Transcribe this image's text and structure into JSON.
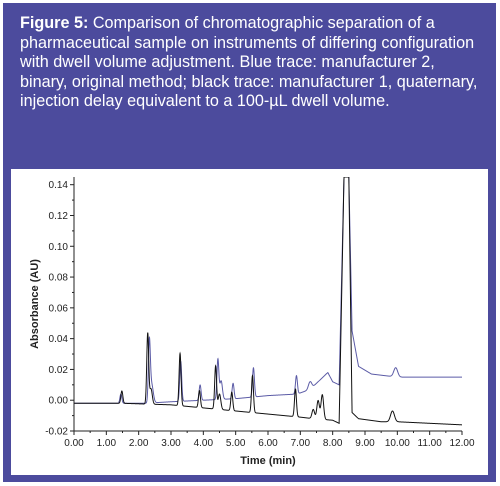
{
  "caption": {
    "label": "Figure 5:",
    "text": " Comparison of chromatographic separation of a pharmaceutical sample on instruments of differing configuration with dwell volume adjustment. Blue trace: manufacturer 2, binary, original method; black trace: manufacturer 1, quaternary, injection delay equivalent to a 100-µL dwell volume."
  },
  "colors": {
    "panel": "#4c4b9d",
    "blue_trace": "#5b5ba6",
    "black_trace": "#111111"
  },
  "chart_data": {
    "type": "line",
    "title": "",
    "xlabel": "Time (min)",
    "ylabel": "Absorbance (AU)",
    "xlim": [
      0,
      12
    ],
    "ylim": [
      -0.02,
      0.145
    ],
    "x_ticks": [
      "0.00",
      "1.00",
      "2.00",
      "3.00",
      "4.00",
      "5.00",
      "6.00",
      "7.00",
      "8.00",
      "9.00",
      "10.00",
      "11.00",
      "12.00"
    ],
    "y_ticks": [
      "-0.02",
      "0.00",
      "0.02",
      "0.04",
      "0.06",
      "0.08",
      "0.10",
      "0.12",
      "0.14"
    ],
    "y_tick_values": [
      -0.02,
      0.0,
      0.02,
      0.04,
      0.06,
      0.08,
      0.1,
      0.12,
      0.14
    ],
    "grid": false,
    "series": [
      {
        "color": "#5b5ba6",
        "baseline": [
          [
            0,
            -0.002
          ],
          [
            2.2,
            -0.002
          ],
          [
            3.0,
            -0.001
          ],
          [
            4.0,
            0.0
          ],
          [
            5.0,
            0.001
          ],
          [
            6.0,
            0.003
          ],
          [
            6.9,
            0.004
          ],
          [
            7.3,
            0.007
          ],
          [
            7.5,
            0.011
          ],
          [
            7.7,
            0.015
          ],
          [
            7.85,
            0.018
          ],
          [
            8.0,
            0.012
          ],
          [
            8.2,
            0.01
          ],
          [
            8.35,
            0.145
          ],
          [
            8.5,
            0.145
          ],
          [
            8.6,
            0.045
          ],
          [
            8.8,
            0.022
          ],
          [
            9.2,
            0.017
          ],
          [
            9.6,
            0.016
          ],
          [
            10.0,
            0.015
          ],
          [
            10.5,
            0.015
          ],
          [
            12.0,
            0.015
          ]
        ],
        "peaks": [
          [
            1.45,
            0.006,
            0.03
          ],
          [
            2.33,
            0.038,
            0.03
          ],
          [
            2.4,
            0.012,
            0.05
          ],
          [
            3.3,
            0.026,
            0.03
          ],
          [
            3.9,
            0.01,
            0.03
          ],
          [
            4.45,
            0.026,
            0.03
          ],
          [
            4.55,
            0.012,
            0.04
          ],
          [
            4.92,
            0.01,
            0.03
          ],
          [
            5.55,
            0.019,
            0.03
          ],
          [
            6.88,
            0.012,
            0.03
          ],
          [
            7.3,
            0.005,
            0.05
          ],
          [
            9.95,
            0.006,
            0.06
          ]
        ]
      },
      {
        "color": "#111111",
        "baseline": [
          [
            0,
            -0.002
          ],
          [
            1.5,
            -0.002
          ],
          [
            3.0,
            -0.003
          ],
          [
            4.0,
            -0.005
          ],
          [
            5.0,
            -0.007
          ],
          [
            6.0,
            -0.009
          ],
          [
            7.0,
            -0.011
          ],
          [
            7.4,
            -0.012
          ],
          [
            8.0,
            -0.013
          ],
          [
            8.2,
            -0.015
          ],
          [
            8.35,
            0.145
          ],
          [
            8.5,
            0.145
          ],
          [
            8.6,
            -0.008
          ],
          [
            8.8,
            -0.012
          ],
          [
            9.5,
            -0.014
          ],
          [
            10.0,
            -0.014
          ],
          [
            12.0,
            -0.016
          ]
        ],
        "peaks": [
          [
            1.48,
            0.008,
            0.03
          ],
          [
            2.28,
            0.046,
            0.03
          ],
          [
            2.38,
            0.01,
            0.04
          ],
          [
            3.28,
            0.034,
            0.03
          ],
          [
            3.88,
            0.011,
            0.03
          ],
          [
            4.38,
            0.028,
            0.03
          ],
          [
            4.5,
            0.01,
            0.04
          ],
          [
            4.88,
            0.012,
            0.03
          ],
          [
            5.52,
            0.024,
            0.03
          ],
          [
            6.85,
            0.018,
            0.03
          ],
          [
            7.4,
            0.006,
            0.04
          ],
          [
            7.55,
            0.012,
            0.04
          ],
          [
            7.68,
            0.016,
            0.04
          ],
          [
            9.85,
            0.007,
            0.06
          ]
        ]
      }
    ]
  }
}
